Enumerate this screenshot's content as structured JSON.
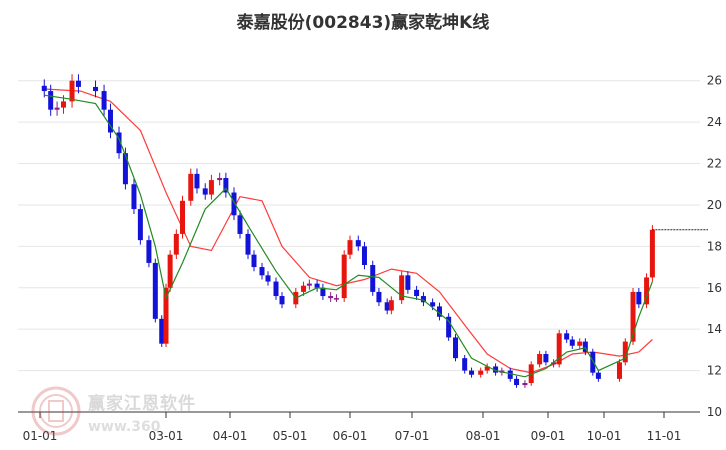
{
  "chart_data": {
    "type": "candlestick",
    "title": "泰嘉股份(002843)赢家乾坤K线",
    "x_ticks": [
      "01-01",
      "03-01",
      "04-01",
      "05-01",
      "06-01",
      "07-01",
      "08-01",
      "09-01",
      "10-01",
      "11-01"
    ],
    "y_ticks": [
      10,
      12,
      14,
      16,
      18,
      20,
      22,
      24,
      26
    ],
    "ylim": [
      10,
      27
    ],
    "grid": true,
    "last_price_line": 18.8,
    "colors": {
      "up": "#e8150e",
      "down": "#1212d8",
      "neutral": "#8b1a8b",
      "ma_short": "#228b22",
      "ma_long": "#ff3b3b",
      "grid": "#e6e6e6",
      "axis": "#333333"
    },
    "series": [
      {
        "type": "candlestick",
        "points": [
          {
            "d": "2023-01-03",
            "c": 25.5
          },
          {
            "d": "2023-01-06",
            "c": 24.6
          },
          {
            "d": "2023-01-09",
            "c": 24.7
          },
          {
            "d": "2023-01-12",
            "c": 25.0
          },
          {
            "d": "2023-01-16",
            "c": 26.0
          },
          {
            "d": "2023-01-19",
            "c": 25.7
          },
          {
            "d": "2023-01-27",
            "c": 25.5
          },
          {
            "d": "2023-01-31",
            "c": 24.6
          },
          {
            "d": "2023-02-03",
            "c": 23.5
          },
          {
            "d": "2023-02-07",
            "c": 22.5
          },
          {
            "d": "2023-02-10",
            "c": 21.0
          },
          {
            "d": "2023-02-14",
            "c": 19.8
          },
          {
            "d": "2023-02-17",
            "c": 18.3
          },
          {
            "d": "2023-02-21",
            "c": 17.2
          },
          {
            "d": "2023-02-24",
            "c": 14.5
          },
          {
            "d": "2023-02-27",
            "c": 13.3
          },
          {
            "d": "2023-03-01",
            "c": 16.0
          },
          {
            "d": "2023-03-03",
            "c": 17.6
          },
          {
            "d": "2023-03-06",
            "c": 18.6
          },
          {
            "d": "2023-03-09",
            "c": 20.2
          },
          {
            "d": "2023-03-13",
            "c": 21.5
          },
          {
            "d": "2023-03-16",
            "c": 20.8
          },
          {
            "d": "2023-03-20",
            "c": 20.5
          },
          {
            "d": "2023-03-23",
            "c": 21.2
          },
          {
            "d": "2023-03-27",
            "c": 21.3
          },
          {
            "d": "2023-03-30",
            "c": 20.6
          },
          {
            "d": "2023-04-03",
            "c": 19.5
          },
          {
            "d": "2023-04-06",
            "c": 18.6
          },
          {
            "d": "2023-04-10",
            "c": 17.6
          },
          {
            "d": "2023-04-13",
            "c": 17.0
          },
          {
            "d": "2023-04-17",
            "c": 16.6
          },
          {
            "d": "2023-04-20",
            "c": 16.3
          },
          {
            "d": "2023-04-24",
            "c": 15.6
          },
          {
            "d": "2023-04-27",
            "c": 15.2
          },
          {
            "d": "2023-05-04",
            "c": 15.8
          },
          {
            "d": "2023-05-08",
            "c": 16.1
          },
          {
            "d": "2023-05-11",
            "c": 16.2
          },
          {
            "d": "2023-05-15",
            "c": 16.0
          },
          {
            "d": "2023-05-18",
            "c": 15.6
          },
          {
            "d": "2023-05-22",
            "c": 15.5
          },
          {
            "d": "2023-05-25",
            "c": 15.5
          },
          {
            "d": "2023-05-29",
            "c": 17.6
          },
          {
            "d": "2023-06-01",
            "c": 18.3
          },
          {
            "d": "2023-06-05",
            "c": 18.0
          },
          {
            "d": "2023-06-08",
            "c": 17.1
          },
          {
            "d": "2023-06-12",
            "c": 15.8
          },
          {
            "d": "2023-06-15",
            "c": 15.3
          },
          {
            "d": "2023-06-19",
            "c": 14.9
          },
          {
            "d": "2023-06-21",
            "c": 15.4
          },
          {
            "d": "2023-06-26",
            "c": 16.6
          },
          {
            "d": "2023-06-29",
            "c": 15.9
          },
          {
            "d": "2023-07-03",
            "c": 15.6
          },
          {
            "d": "2023-07-06",
            "c": 15.3
          },
          {
            "d": "2023-07-10",
            "c": 15.1
          },
          {
            "d": "2023-07-13",
            "c": 14.6
          },
          {
            "d": "2023-07-17",
            "c": 13.6
          },
          {
            "d": "2023-07-20",
            "c": 12.6
          },
          {
            "d": "2023-07-24",
            "c": 12.0
          },
          {
            "d": "2023-07-27",
            "c": 11.8
          },
          {
            "d": "2023-07-31",
            "c": 12.0
          },
          {
            "d": "2023-08-03",
            "c": 12.2
          },
          {
            "d": "2023-08-07",
            "c": 11.9
          },
          {
            "d": "2023-08-10",
            "c": 12.0
          },
          {
            "d": "2023-08-14",
            "c": 11.6
          },
          {
            "d": "2023-08-17",
            "c": 11.3
          },
          {
            "d": "2023-08-21",
            "c": 11.4
          },
          {
            "d": "2023-08-24",
            "c": 12.3
          },
          {
            "d": "2023-08-28",
            "c": 12.8
          },
          {
            "d": "2023-08-31",
            "c": 12.4
          },
          {
            "d": "2023-09-04",
            "c": 12.3
          },
          {
            "d": "2023-09-07",
            "c": 13.8
          },
          {
            "d": "2023-09-11",
            "c": 13.5
          },
          {
            "d": "2023-09-14",
            "c": 13.2
          },
          {
            "d": "2023-09-18",
            "c": 13.4
          },
          {
            "d": "2023-09-21",
            "c": 12.9
          },
          {
            "d": "2023-09-25",
            "c": 11.9
          },
          {
            "d": "2023-09-28",
            "c": 11.6
          },
          {
            "d": "2023-10-09",
            "c": 12.4
          },
          {
            "d": "2023-10-12",
            "c": 13.4
          },
          {
            "d": "2023-10-16",
            "c": 15.8
          },
          {
            "d": "2023-10-19",
            "c": 15.2
          },
          {
            "d": "2023-10-23",
            "c": 16.5
          },
          {
            "d": "2023-10-26",
            "c": 18.8
          }
        ]
      },
      {
        "type": "line",
        "points": [
          {
            "d": "2023-01-03",
            "v": 25.3
          },
          {
            "d": "2023-01-16",
            "v": 25.1
          },
          {
            "d": "2023-01-27",
            "v": 24.9
          },
          {
            "d": "2023-02-07",
            "v": 23.2
          },
          {
            "d": "2023-02-17",
            "v": 20.5
          },
          {
            "d": "2023-02-24",
            "v": 18.0
          },
          {
            "d": "2023-03-01",
            "v": 15.5
          },
          {
            "d": "2023-03-09",
            "v": 17.2
          },
          {
            "d": "2023-03-20",
            "v": 19.8
          },
          {
            "d": "2023-03-30",
            "v": 20.8
          },
          {
            "d": "2023-04-10",
            "v": 19.0
          },
          {
            "d": "2023-04-24",
            "v": 16.8
          },
          {
            "d": "2023-05-04",
            "v": 15.5
          },
          {
            "d": "2023-05-15",
            "v": 16.0
          },
          {
            "d": "2023-05-25",
            "v": 15.9
          },
          {
            "d": "2023-06-05",
            "v": 16.6
          },
          {
            "d": "2023-06-15",
            "v": 16.5
          },
          {
            "d": "2023-06-26",
            "v": 15.6
          },
          {
            "d": "2023-07-06",
            "v": 15.4
          },
          {
            "d": "2023-07-17",
            "v": 14.4
          },
          {
            "d": "2023-07-27",
            "v": 12.6
          },
          {
            "d": "2023-08-07",
            "v": 12.0
          },
          {
            "d": "2023-08-21",
            "v": 11.7
          },
          {
            "d": "2023-08-31",
            "v": 12.1
          },
          {
            "d": "2023-09-11",
            "v": 12.9
          },
          {
            "d": "2023-09-21",
            "v": 13.1
          },
          {
            "d": "2023-09-28",
            "v": 12.0
          },
          {
            "d": "2023-10-12",
            "v": 12.6
          },
          {
            "d": "2023-10-19",
            "v": 14.6
          },
          {
            "d": "2023-10-26",
            "v": 16.3
          }
        ]
      },
      {
        "type": "line",
        "points": [
          {
            "d": "2023-01-03",
            "v": 25.6
          },
          {
            "d": "2023-01-20",
            "v": 25.5
          },
          {
            "d": "2023-02-03",
            "v": 25.0
          },
          {
            "d": "2023-02-17",
            "v": 23.6
          },
          {
            "d": "2023-03-01",
            "v": 20.6
          },
          {
            "d": "2023-03-13",
            "v": 18.0
          },
          {
            "d": "2023-03-23",
            "v": 17.8
          },
          {
            "d": "2023-04-06",
            "v": 20.4
          },
          {
            "d": "2023-04-17",
            "v": 20.2
          },
          {
            "d": "2023-04-27",
            "v": 18.0
          },
          {
            "d": "2023-05-11",
            "v": 16.5
          },
          {
            "d": "2023-05-25",
            "v": 16.1
          },
          {
            "d": "2023-06-08",
            "v": 16.4
          },
          {
            "d": "2023-06-21",
            "v": 16.9
          },
          {
            "d": "2023-07-03",
            "v": 16.7
          },
          {
            "d": "2023-07-13",
            "v": 15.8
          },
          {
            "d": "2023-07-24",
            "v": 14.2
          },
          {
            "d": "2023-08-03",
            "v": 12.8
          },
          {
            "d": "2023-08-14",
            "v": 12.1
          },
          {
            "d": "2023-08-24",
            "v": 11.9
          },
          {
            "d": "2023-09-04",
            "v": 12.3
          },
          {
            "d": "2023-09-14",
            "v": 12.8
          },
          {
            "d": "2023-09-25",
            "v": 12.9
          },
          {
            "d": "2023-10-09",
            "v": 12.7
          },
          {
            "d": "2023-10-19",
            "v": 12.9
          },
          {
            "d": "2023-10-26",
            "v": 13.5
          }
        ]
      }
    ]
  },
  "watermark": {
    "name": "赢家江恩软件",
    "url": "www.360"
  }
}
